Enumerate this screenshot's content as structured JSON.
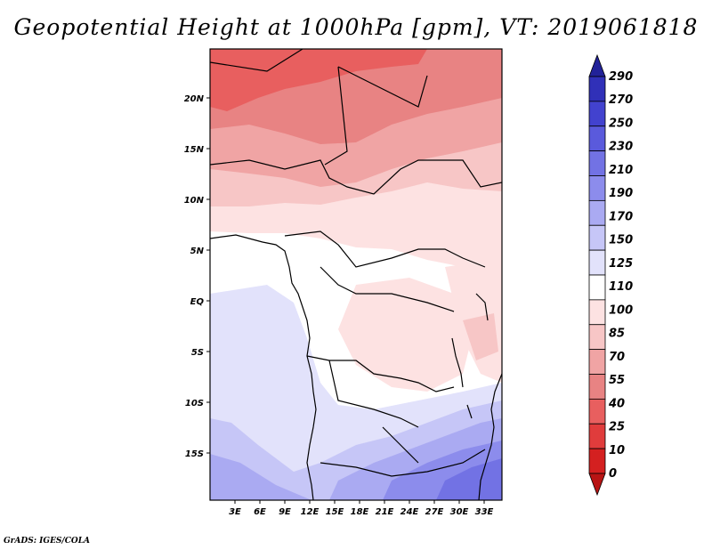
{
  "title": "Geopotential Height at 1000hPa [gpm], VT: 2019061818",
  "credit": "GrADS: IGES/COLA",
  "map": {
    "lon_labels": [
      "3E",
      "6E",
      "9E",
      "12E",
      "15E",
      "18E",
      "21E",
      "24E",
      "27E",
      "30E",
      "33E"
    ],
    "lat_labels": [
      "20N",
      "15N",
      "10N",
      "5N",
      "EQ",
      "5S",
      "10S",
      "15S"
    ]
  },
  "colorbar": {
    "levels": [
      "0",
      "10",
      "25",
      "40",
      "55",
      "70",
      "85",
      "100",
      "110",
      "125",
      "150",
      "170",
      "190",
      "210",
      "230",
      "250",
      "270",
      "290"
    ],
    "colors": [
      "#b81414",
      "#d42020",
      "#e03c3c",
      "#e85f5f",
      "#e88383",
      "#f0a4a4",
      "#f7c6c6",
      "#fde2e2",
      "#ffffff",
      "#e2e2fb",
      "#c6c6f7",
      "#aaaaf2",
      "#8c8cec",
      "#7272e4",
      "#5a5adc",
      "#4242cf",
      "#3030b8",
      "#222299"
    ]
  },
  "chart_data": {
    "type": "heatmap",
    "variable": "Geopotential Height at 1000hPa",
    "units": "gpm",
    "valid_time": "2019061818",
    "lon_range": [
      0,
      35
    ],
    "lat_range": [
      -20,
      24
    ],
    "contour_levels": [
      0,
      10,
      25,
      40,
      55,
      70,
      85,
      100,
      110,
      125,
      150,
      170,
      190,
      210,
      230,
      250,
      270,
      290
    ],
    "bands": [
      {
        "lat": 22,
        "value_range": [
          40,
          55
        ]
      },
      {
        "lat": 17,
        "value_range": [
          55,
          70
        ]
      },
      {
        "lat": 12,
        "value_range": [
          70,
          85
        ]
      },
      {
        "lat": 8,
        "value_range": [
          85,
          100
        ]
      },
      {
        "lat": 4,
        "value_range": [
          100,
          110
        ]
      },
      {
        "lat": 0,
        "value_range": [
          110,
          125
        ]
      },
      {
        "lat": -5,
        "value_range": [
          100,
          110
        ]
      },
      {
        "lat": -11,
        "value_range": [
          110,
          150
        ]
      },
      {
        "lat": -16,
        "value_range": [
          150,
          190
        ]
      }
    ]
  }
}
